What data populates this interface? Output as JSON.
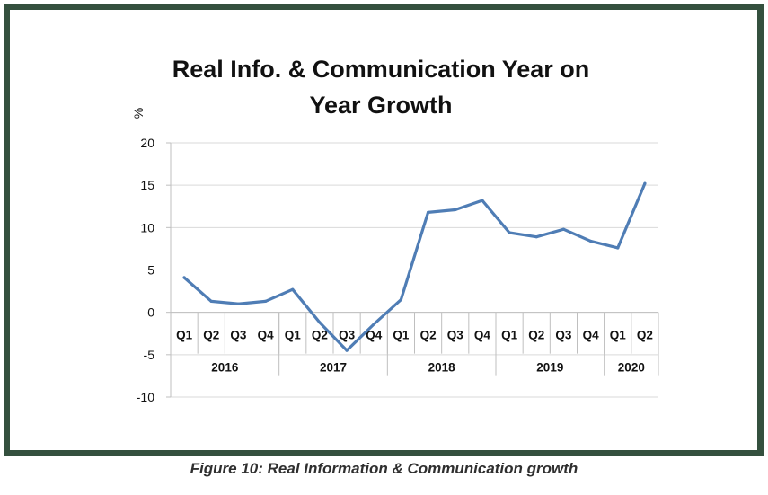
{
  "caption": "Figure 10: Real Information & Communication growth",
  "colors": {
    "frame": "#34503e",
    "line": "#4f7db5",
    "grid": "#d9d9d9",
    "axis": "#bfbfbf"
  },
  "chart_data": {
    "type": "line",
    "title_lines": [
      "Real Info. & Communication Year on",
      "Year Growth"
    ],
    "ylabel": "%",
    "xlabel": "",
    "ylim": [
      -10,
      20
    ],
    "yticks": [
      20,
      15,
      10,
      5,
      0,
      -5,
      -10
    ],
    "ytick_labels": [
      "20",
      "15",
      "10",
      "5",
      "0",
      "-5",
      "-10"
    ],
    "grid": true,
    "legend": "none",
    "categories": [
      "Q1",
      "Q2",
      "Q3",
      "Q4",
      "Q1",
      "Q2",
      "Q3",
      "Q4",
      "Q1",
      "Q2",
      "Q3",
      "Q4",
      "Q1",
      "Q2",
      "Q3",
      "Q4",
      "Q1",
      "Q2"
    ],
    "years": [
      {
        "label": "2016",
        "count": 4
      },
      {
        "label": "2017",
        "count": 4
      },
      {
        "label": "2018",
        "count": 4
      },
      {
        "label": "2019",
        "count": 4
      },
      {
        "label": "2020",
        "count": 2
      }
    ],
    "series": [
      {
        "name": "Real Info. & Communication YoY growth",
        "values": [
          4.1,
          1.3,
          1.0,
          1.3,
          2.7,
          -1.2,
          -4.5,
          -1.4,
          1.5,
          11.8,
          12.1,
          13.2,
          9.4,
          8.9,
          9.8,
          8.4,
          7.6,
          15.2
        ]
      }
    ]
  }
}
